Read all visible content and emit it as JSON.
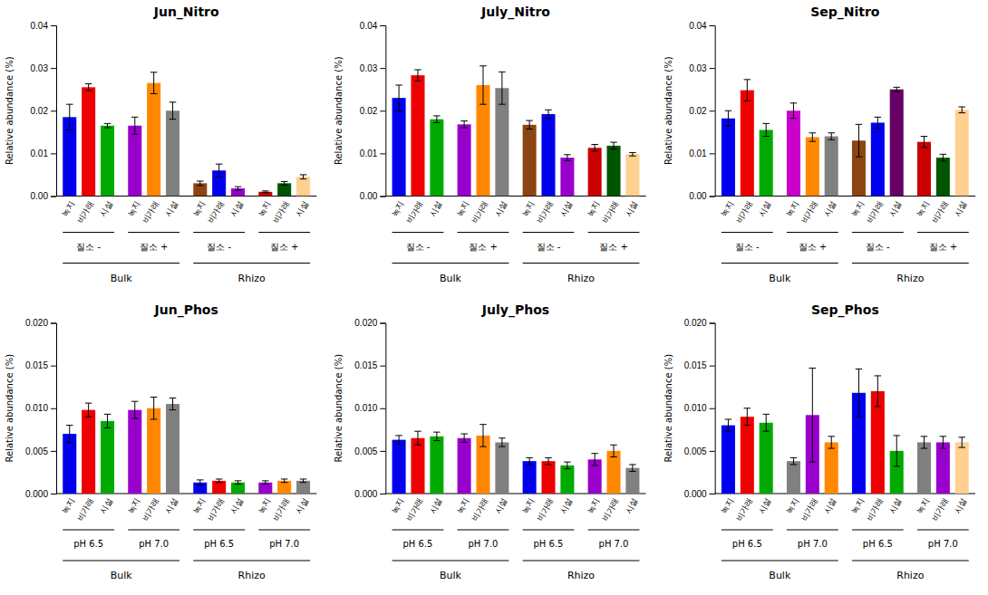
{
  "chart_data": [
    {
      "type": "bar",
      "title": "Jun_Nitro",
      "y_label": "Relative abundance (%)",
      "ylim": [
        0,
        0.04
      ],
      "yticks": [
        {
          "value": 0.0,
          "label": "0.00"
        },
        0.01,
        0.02,
        0.03,
        0.04
      ],
      "categories": [
        "녹지",
        "비가래",
        "시설",
        "녹지",
        "비가래",
        "시설",
        "녹지",
        "비가래",
        "시설",
        "녹지",
        "비가래",
        "시설"
      ],
      "values": [
        0.0185,
        0.0255,
        0.0165,
        0.0165,
        0.0265,
        0.02,
        0.003,
        0.006,
        0.0018,
        0.001,
        0.003,
        0.0045
      ],
      "errors": [
        0.003,
        0.0008,
        0.0005,
        0.002,
        0.0025,
        0.002,
        0.0005,
        0.0015,
        0.0004,
        0.0002,
        0.0004,
        0.0005
      ],
      "colors": [
        "#0000EE",
        "#EE0000",
        "#00AA00",
        "#9900CC",
        "#FF8800",
        "#808080",
        "#8B4513",
        "#0000EE",
        "#9900CC",
        "#CC0000",
        "#005500",
        "#FFD090"
      ],
      "group_levels": [
        [
          {
            "label": "질소 -",
            "range": [
              0,
              2
            ]
          },
          {
            "label": "질소 +",
            "range": [
              3,
              5
            ]
          },
          {
            "label": "질소 -",
            "range": [
              6,
              8
            ]
          },
          {
            "label": "질소 +",
            "range": [
              9,
              11
            ]
          }
        ],
        [
          {
            "label": "Bulk",
            "range": [
              0,
              5
            ]
          },
          {
            "label": "Rhizo",
            "range": [
              6,
              11
            ]
          }
        ]
      ],
      "grid": false
    },
    {
      "type": "bar",
      "title": "July_Nitro",
      "y_label": "Relative abundance (%)",
      "ylim": [
        0,
        0.04
      ],
      "yticks": [
        {
          "value": 0.0,
          "label": "0.00"
        },
        0.01,
        0.02,
        0.03,
        0.04
      ],
      "categories": [
        "녹지",
        "비가래",
        "시설",
        "녹지",
        "비가래",
        "시설",
        "녹지",
        "비가래",
        "시설",
        "녹지",
        "비가래",
        "시설"
      ],
      "values": [
        0.023,
        0.0283,
        0.018,
        0.0168,
        0.026,
        0.0253,
        0.0167,
        0.0192,
        0.009,
        0.0113,
        0.0118,
        0.0098
      ],
      "errors": [
        0.003,
        0.0013,
        0.0008,
        0.0008,
        0.0045,
        0.0038,
        0.001,
        0.001,
        0.0007,
        0.0008,
        0.0008,
        0.0004
      ],
      "colors": [
        "#0000EE",
        "#EE0000",
        "#00AA00",
        "#9900CC",
        "#FF8800",
        "#808080",
        "#8B4513",
        "#0000EE",
        "#9900CC",
        "#CC0000",
        "#005500",
        "#FFD090"
      ],
      "group_levels": [
        [
          {
            "label": "질소 -",
            "range": [
              0,
              2
            ]
          },
          {
            "label": "질소 +",
            "range": [
              3,
              5
            ]
          },
          {
            "label": "질소 -",
            "range": [
              6,
              8
            ]
          },
          {
            "label": "질소 +",
            "range": [
              9,
              11
            ]
          }
        ],
        [
          {
            "label": "Bulk",
            "range": [
              0,
              5
            ]
          },
          {
            "label": "Rhizo",
            "range": [
              6,
              11
            ]
          }
        ]
      ],
      "grid": false
    },
    {
      "type": "bar",
      "title": "Sep_Nitro",
      "y_label": "Relative abundance (%)",
      "ylim": [
        0,
        0.04
      ],
      "yticks": [
        {
          "value": 0.0,
          "label": "0.00"
        },
        0.01,
        0.02,
        0.03,
        0.04
      ],
      "categories": [
        "녹지",
        "비가래",
        "시설",
        "녹지",
        "비가래",
        "시설",
        "녹지",
        "비가래",
        "시설",
        "녹지",
        "비가래",
        "시설"
      ],
      "values": [
        0.0182,
        0.0248,
        0.0155,
        0.02,
        0.0138,
        0.014,
        0.013,
        0.0172,
        0.025,
        0.0127,
        0.009,
        0.0202
      ],
      "errors": [
        0.0018,
        0.0025,
        0.0015,
        0.0018,
        0.001,
        0.0008,
        0.0038,
        0.0013,
        0.0005,
        0.0013,
        0.0008,
        0.0007
      ],
      "colors": [
        "#0000EE",
        "#EE0000",
        "#00AA00",
        "#CC00CC",
        "#FF8800",
        "#808080",
        "#8B4513",
        "#0000EE",
        "#660066",
        "#CC0000",
        "#005500",
        "#FFD090"
      ],
      "group_levels": [
        [
          {
            "label": "질소 -",
            "range": [
              0,
              2
            ]
          },
          {
            "label": "질소 +",
            "range": [
              3,
              5
            ]
          },
          {
            "label": "질소 -",
            "range": [
              6,
              8
            ]
          },
          {
            "label": "질소 +",
            "range": [
              9,
              11
            ]
          }
        ],
        [
          {
            "label": "Bulk",
            "range": [
              0,
              5
            ]
          },
          {
            "label": "Rhizo",
            "range": [
              6,
              11
            ]
          }
        ]
      ],
      "grid": false
    },
    {
      "type": "bar",
      "title": "Jun_Phos",
      "y_label": "Relative abundance (%)",
      "ylim": [
        0,
        0.02
      ],
      "yticks": [
        {
          "value": 0.0,
          "label": "0.000"
        },
        0.005,
        {
          "value": 0.01,
          "label": "0.010"
        },
        0.015,
        {
          "value": 0.02,
          "label": "0.020"
        }
      ],
      "categories": [
        "녹지",
        "비가래",
        "시설",
        "녹지",
        "비가래",
        "시설",
        "녹지",
        "비가래",
        "시설",
        "녹지",
        "비가래",
        "시설"
      ],
      "values": [
        0.007,
        0.0098,
        0.0085,
        0.0098,
        0.01,
        0.0105,
        0.0013,
        0.0015,
        0.0013,
        0.0013,
        0.0015,
        0.0015
      ],
      "errors": [
        0.001,
        0.0008,
        0.0008,
        0.001,
        0.0013,
        0.0007,
        0.0003,
        0.0002,
        0.0002,
        0.0002,
        0.0002,
        0.0002
      ],
      "colors": [
        "#0000EE",
        "#EE0000",
        "#00AA00",
        "#9900CC",
        "#FF8800",
        "#808080",
        "#0000EE",
        "#EE0000",
        "#00AA00",
        "#9900CC",
        "#FF8800",
        "#808080"
      ],
      "group_levels": [
        [
          {
            "label": "pH 6.5",
            "range": [
              0,
              2
            ]
          },
          {
            "label": "pH 7.0",
            "range": [
              3,
              5
            ]
          },
          {
            "label": "pH 6.5",
            "range": [
              6,
              8
            ]
          },
          {
            "label": "pH 7.0",
            "range": [
              9,
              11
            ]
          }
        ],
        [
          {
            "label": "Bulk",
            "range": [
              0,
              5
            ]
          },
          {
            "label": "Rhizo",
            "range": [
              6,
              11
            ]
          }
        ]
      ],
      "grid": false
    },
    {
      "type": "bar",
      "title": "July_Phos",
      "y_label": "Relative abundance (%)",
      "ylim": [
        0,
        0.02
      ],
      "yticks": [
        {
          "value": 0.0,
          "label": "0.000"
        },
        0.005,
        {
          "value": 0.01,
          "label": "0.010"
        },
        0.015,
        {
          "value": 0.02,
          "label": "0.020"
        }
      ],
      "categories": [
        "녹지",
        "비가래",
        "시설",
        "녹지",
        "비가래",
        "시설",
        "녹지",
        "비가래",
        "시설",
        "녹지",
        "비가래",
        "시설"
      ],
      "values": [
        0.0063,
        0.0065,
        0.0067,
        0.0065,
        0.0068,
        0.006,
        0.0038,
        0.0038,
        0.0033,
        0.004,
        0.005,
        0.003
      ],
      "errors": [
        0.0005,
        0.0008,
        0.0005,
        0.0005,
        0.0013,
        0.0005,
        0.0004,
        0.0004,
        0.0004,
        0.0007,
        0.0007,
        0.0004
      ],
      "colors": [
        "#0000EE",
        "#EE0000",
        "#00AA00",
        "#9900CC",
        "#FF8800",
        "#808080",
        "#0000EE",
        "#EE0000",
        "#00AA00",
        "#9900CC",
        "#FF8800",
        "#808080"
      ],
      "group_levels": [
        [
          {
            "label": "pH 6.5",
            "range": [
              0,
              2
            ]
          },
          {
            "label": "pH 7.0",
            "range": [
              3,
              5
            ]
          },
          {
            "label": "pH 6.5",
            "range": [
              6,
              8
            ]
          },
          {
            "label": "pH 7.0",
            "range": [
              9,
              11
            ]
          }
        ],
        [
          {
            "label": "Bulk",
            "range": [
              0,
              5
            ]
          },
          {
            "label": "Rhizo",
            "range": [
              6,
              11
            ]
          }
        ]
      ],
      "grid": false
    },
    {
      "type": "bar",
      "title": "Sep_Phos",
      "y_label": "Relative abundance (%)",
      "ylim": [
        0,
        0.02
      ],
      "yticks": [
        {
          "value": 0.0,
          "label": "0.000"
        },
        0.005,
        {
          "value": 0.01,
          "label": "0.010"
        },
        0.015,
        {
          "value": 0.02,
          "label": "0.020"
        }
      ],
      "categories": [
        "녹지",
        "비가래",
        "시설",
        "녹지",
        "비가래",
        "시설",
        "녹지",
        "비가래",
        "시설",
        "녹지",
        "비가래",
        "시설"
      ],
      "values": [
        0.008,
        0.009,
        0.0083,
        0.0038,
        0.0092,
        0.006,
        0.0118,
        0.012,
        0.005,
        0.006,
        0.006,
        0.006
      ],
      "errors": [
        0.0007,
        0.001,
        0.001,
        0.0004,
        0.0055,
        0.0007,
        0.0028,
        0.0018,
        0.0018,
        0.0007,
        0.0007,
        0.0006
      ],
      "colors": [
        "#0000EE",
        "#EE0000",
        "#00AA00",
        "#808080",
        "#9900CC",
        "#FF8800",
        "#0000EE",
        "#EE0000",
        "#00AA00",
        "#808080",
        "#9900CC",
        "#FFD090"
      ],
      "group_levels": [
        [
          {
            "label": "pH 6.5",
            "range": [
              0,
              2
            ]
          },
          {
            "label": "pH 7.0",
            "range": [
              3,
              5
            ]
          },
          {
            "label": "pH 6.5",
            "range": [
              6,
              8
            ]
          },
          {
            "label": "pH 7.0",
            "range": [
              9,
              11
            ]
          }
        ],
        [
          {
            "label": "Bulk",
            "range": [
              0,
              5
            ]
          },
          {
            "label": "Rhizo",
            "range": [
              6,
              11
            ]
          }
        ]
      ],
      "grid": false
    }
  ]
}
